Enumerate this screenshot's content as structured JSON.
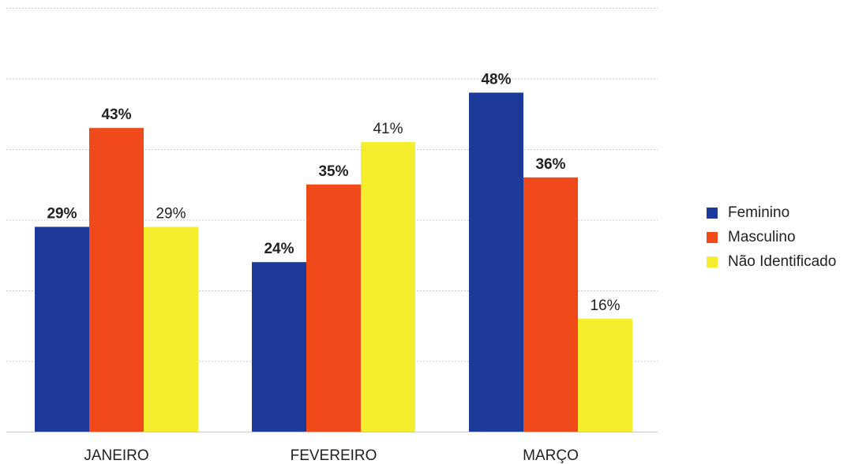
{
  "colors": {
    "feminino": "#1b3a9a",
    "masculino": "#f04a1a",
    "nao_identificado": "#f5ee2e",
    "grid": "#c8c8c8",
    "text": "#222222"
  },
  "legend": {
    "items": [
      {
        "label": "Feminino",
        "color": "#1b3a9a"
      },
      {
        "label": "Masculino",
        "color": "#f04a1a"
      },
      {
        "label": "Não Identificado",
        "color": "#f5ee2e"
      }
    ]
  },
  "chart_data": {
    "type": "bar",
    "categories": [
      "JANEIRO",
      "FEVEREIRO",
      "MARÇO"
    ],
    "series": [
      {
        "name": "Feminino",
        "values": [
          29,
          24,
          48
        ],
        "color": "#1b3a9a",
        "label_bold": true
      },
      {
        "name": "Masculino",
        "values": [
          43,
          35,
          36
        ],
        "color": "#f04a1a",
        "label_bold": true
      },
      {
        "name": "Não Identificado",
        "values": [
          29,
          41,
          16
        ],
        "color": "#f5ee2e",
        "label_bold": false
      }
    ],
    "data_labels": [
      [
        "29%",
        "24%",
        "48%"
      ],
      [
        "43%",
        "35%",
        "36%"
      ],
      [
        "29%",
        "41%",
        "16%"
      ]
    ],
    "ylim": [
      0,
      60
    ],
    "grid": true,
    "legend_position": "right",
    "title": "",
    "xlabel": "",
    "ylabel": ""
  }
}
